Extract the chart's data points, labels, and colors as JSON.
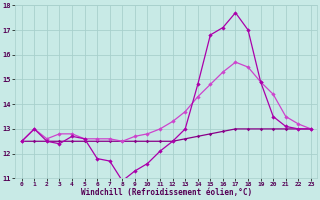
{
  "xlabel": "Windchill (Refroidissement éolien,°C)",
  "bg_color": "#c8eae6",
  "grid_color": "#a8d0cc",
  "line_color1": "#aa00aa",
  "line_color2": "#cc44cc",
  "line_color3": "#880088",
  "xlim_min": -0.5,
  "xlim_max": 23.5,
  "ylim_min": 11,
  "ylim_max": 18,
  "yticks": [
    11,
    12,
    13,
    14,
    15,
    16,
    17,
    18
  ],
  "xticks": [
    0,
    1,
    2,
    3,
    4,
    5,
    6,
    7,
    8,
    9,
    10,
    11,
    12,
    13,
    14,
    15,
    16,
    17,
    18,
    19,
    20,
    21,
    22,
    23
  ],
  "series1_x": [
    0,
    1,
    2,
    3,
    4,
    5,
    6,
    7,
    8,
    9,
    10,
    11,
    12,
    13,
    14,
    15,
    16,
    17,
    18,
    19,
    20,
    21,
    22,
    23
  ],
  "series1_y": [
    12.5,
    13.0,
    12.5,
    12.4,
    12.7,
    12.6,
    11.8,
    11.7,
    10.9,
    11.3,
    11.6,
    12.1,
    12.5,
    13.0,
    14.8,
    16.8,
    17.1,
    17.7,
    17.0,
    14.9,
    13.5,
    13.1,
    13.0,
    13.0
  ],
  "series2_x": [
    0,
    1,
    2,
    3,
    4,
    5,
    6,
    7,
    8,
    9,
    10,
    11,
    12,
    13,
    14,
    15,
    16,
    17,
    18,
    19,
    20,
    21,
    22,
    23
  ],
  "series2_y": [
    12.5,
    13.0,
    12.6,
    12.8,
    12.8,
    12.6,
    12.6,
    12.6,
    12.5,
    12.7,
    12.8,
    13.0,
    13.3,
    13.7,
    14.3,
    14.8,
    15.3,
    15.7,
    15.5,
    14.9,
    14.4,
    13.5,
    13.2,
    13.0
  ],
  "series3_x": [
    0,
    1,
    2,
    3,
    4,
    5,
    6,
    7,
    8,
    9,
    10,
    11,
    12,
    13,
    14,
    15,
    16,
    17,
    18,
    19,
    20,
    21,
    22,
    23
  ],
  "series3_y": [
    12.5,
    12.5,
    12.5,
    12.5,
    12.5,
    12.5,
    12.5,
    12.5,
    12.5,
    12.5,
    12.5,
    12.5,
    12.5,
    12.6,
    12.7,
    12.8,
    12.9,
    13.0,
    13.0,
    13.0,
    13.0,
    13.0,
    13.0,
    13.0
  ]
}
